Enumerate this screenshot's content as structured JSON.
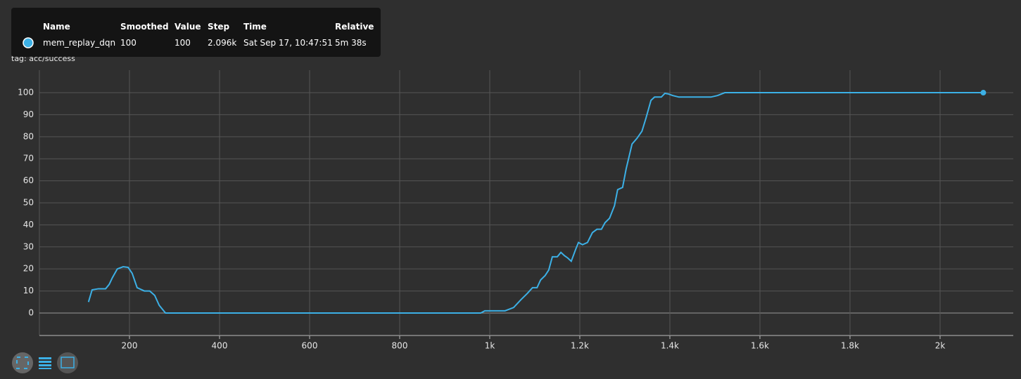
{
  "chart_data": {
    "type": "line",
    "title": "success",
    "tag": "tag: acc/success",
    "x": [
      109,
      117,
      131,
      147,
      155,
      162,
      173,
      186,
      197,
      206,
      217,
      233,
      245,
      256,
      266,
      280,
      400,
      600,
      800,
      980,
      989,
      1006,
      1034,
      1053,
      1069,
      1084,
      1095,
      1105,
      1113,
      1123,
      1131,
      1139,
      1150,
      1158,
      1166,
      1173,
      1181,
      1191,
      1197,
      1206,
      1217,
      1228,
      1238,
      1248,
      1256,
      1266,
      1277,
      1284,
      1295,
      1303,
      1316,
      1327,
      1338,
      1347,
      1358,
      1366,
      1381,
      1389,
      1397,
      1406,
      1420,
      1491,
      1506,
      1522,
      2096
    ],
    "series": [
      {
        "name": "mem_replay_dqn",
        "color": "#3cb0e6",
        "values": [
          5,
          10.5,
          11,
          11,
          13,
          16,
          20,
          21,
          20.7,
          18,
          11.5,
          10,
          10,
          8,
          3.5,
          0,
          0,
          0,
          0,
          0,
          1,
          1,
          1,
          2.5,
          6,
          9,
          11.5,
          11.5,
          15,
          17,
          19.5,
          25.5,
          25.5,
          27.5,
          26,
          25,
          23.5,
          29,
          32,
          31,
          32,
          36.5,
          38,
          38,
          41,
          43,
          48.7,
          56,
          57,
          65.5,
          76.7,
          79.3,
          82.5,
          88.5,
          96.5,
          98,
          98,
          99.7,
          99.4,
          98.7,
          98,
          98,
          98.7,
          100,
          100
        ]
      }
    ],
    "xlim": [
      0,
      2162.5
    ],
    "xticks": [
      200,
      400,
      600,
      800,
      {
        "value": 1000,
        "label": "1k"
      },
      {
        "value": 1200,
        "label": "1.2k"
      },
      {
        "value": 1400,
        "label": "1.4k"
      },
      {
        "value": 1600,
        "label": "1.6k"
      },
      {
        "value": 1800,
        "label": "1.8k"
      },
      {
        "value": 2000,
        "label": "2k"
      }
    ],
    "ylim": [
      -10.2,
      110.2
    ],
    "yticks": [
      0,
      10,
      20,
      30,
      40,
      50,
      60,
      70,
      80,
      90,
      100
    ],
    "grid": true,
    "tooltip": {
      "columns": [
        "Name",
        "Smoothed",
        "Value",
        "Step",
        "Time",
        "Relative"
      ],
      "cells": [
        "100",
        "100",
        "2.096k",
        "Sat Sep 17, 10:47:51",
        "5m 38s"
      ]
    }
  }
}
